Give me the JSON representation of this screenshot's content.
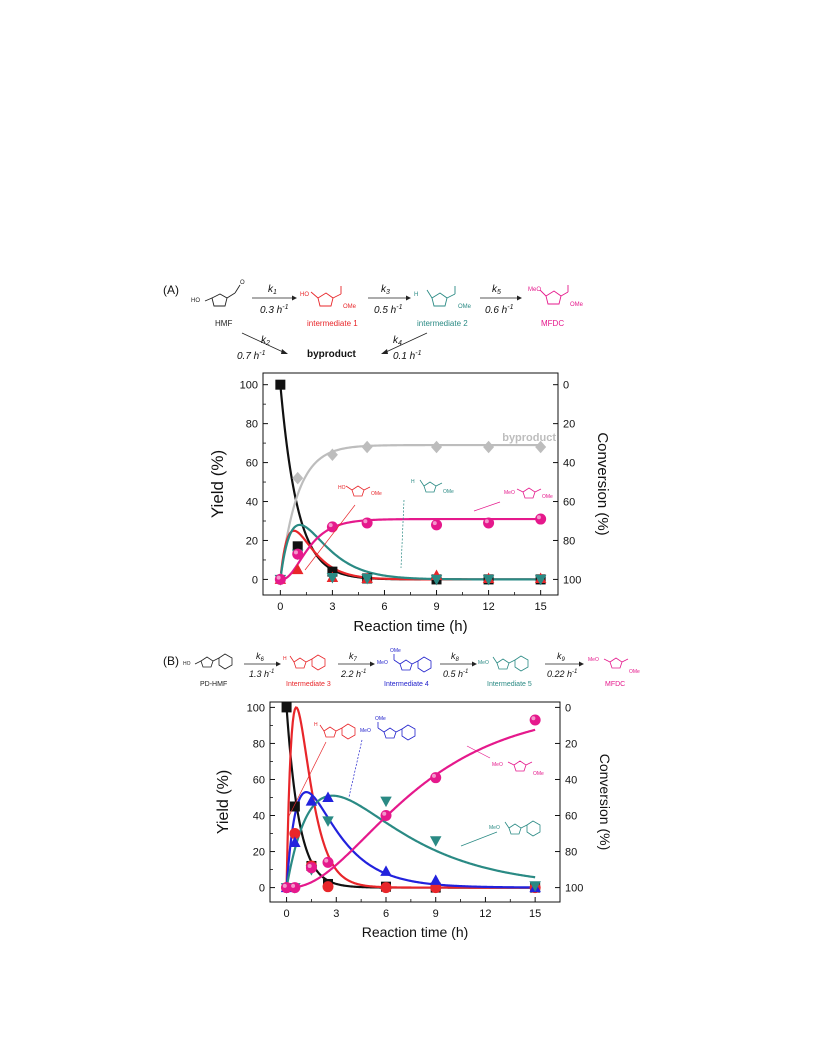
{
  "panel_a": {
    "panel_label": "(A)",
    "scheme": {
      "species": [
        {
          "label": "HMF",
          "color": "#222222"
        },
        {
          "label": "intermediate 1",
          "color": "#e8262a"
        },
        {
          "label": "intermediate 2",
          "color": "#2a8a84"
        },
        {
          "label": "MFDC",
          "color": "#e5198c"
        }
      ],
      "main_steps": [
        {
          "k": "k",
          "sub": "1",
          "rate": "0.3 h",
          "sup": "-1"
        },
        {
          "k": "k",
          "sub": "3",
          "rate": "0.5 h",
          "sup": "-1"
        },
        {
          "k": "k",
          "sub": "5",
          "rate": "0.6 h",
          "sup": "-1"
        }
      ],
      "side_steps": [
        {
          "k": "k",
          "sub": "2",
          "rate": "0.7 h",
          "sup": "-1"
        },
        {
          "k": "k",
          "sub": "4",
          "rate": "0.1 h",
          "sup": "-1"
        }
      ],
      "byproduct_label": "byproduct"
    },
    "struct_labels": {
      "ome": "OMe",
      "meo": "MeO",
      "ho": "HO",
      "o": "O",
      "h": "H"
    }
  },
  "panel_b": {
    "panel_label": "(B)",
    "scheme": {
      "species": [
        {
          "label": "PD-HMF",
          "color": "#222222"
        },
        {
          "label": "Intermediate 3",
          "color": "#e8262a"
        },
        {
          "label": "Intermediate 4",
          "color": "#2222cc"
        },
        {
          "label": "Intermediate 5",
          "color": "#2a8a84"
        },
        {
          "label": "MFDC",
          "color": "#e5198c"
        }
      ],
      "main_steps": [
        {
          "k": "k",
          "sub": "6",
          "rate": "1.3 h",
          "sup": "-1"
        },
        {
          "k": "k",
          "sub": "7",
          "rate": "2.2 h",
          "sup": "-1"
        },
        {
          "k": "k",
          "sub": "8",
          "rate": "0.5 h",
          "sup": "-1"
        },
        {
          "k": "k",
          "sub": "9",
          "rate": "0.22 h",
          "sup": "-1"
        }
      ]
    }
  },
  "colors": {
    "black": "#111111",
    "red": "#e8262a",
    "teal": "#2a8a84",
    "magenta": "#e5198c",
    "gray": "#bdbdbd",
    "blue": "#2222dd"
  },
  "chart_data": [
    {
      "type": "scatter",
      "title": "",
      "xlabel": "Reaction time (h)",
      "ylabel": "Yield (%)",
      "y2label": "Conversion (%)",
      "xlim": [
        -1,
        16
      ],
      "ylim": [
        -8,
        106
      ],
      "xticks": [
        0,
        3,
        6,
        9,
        12,
        15
      ],
      "yticks": [
        0,
        20,
        40,
        60,
        80,
        100
      ],
      "y2ticks": [
        100,
        80,
        60,
        40,
        20,
        0
      ],
      "annotation": "byproduct",
      "series": [
        {
          "id": "hmf",
          "marker": "square",
          "color": "#111111",
          "x": [
            0,
            1,
            3,
            5,
            9,
            12,
            15
          ],
          "y": [
            100,
            17,
            4,
            0.5,
            0,
            0,
            0
          ]
        },
        {
          "id": "byproduct",
          "marker": "diamond",
          "color": "#bdbdbd",
          "x": [
            0,
            1,
            3,
            5,
            9,
            12,
            15
          ],
          "y": [
            0,
            52,
            64,
            68,
            68,
            68,
            68
          ]
        },
        {
          "id": "intermediate1",
          "marker": "triangle-up",
          "color": "#e8262a",
          "x": [
            0,
            1,
            3,
            5,
            9,
            12,
            15
          ],
          "y": [
            0,
            5,
            1,
            0.5,
            2,
            0.5,
            0.5
          ]
        },
        {
          "id": "intermediate2",
          "marker": "triangle-down",
          "color": "#2a8a84",
          "x": [
            0,
            1,
            3,
            5,
            9,
            12,
            15
          ],
          "y": [
            0,
            13,
            1,
            0.5,
            0,
            0,
            0
          ]
        },
        {
          "id": "mfdc",
          "marker": "sphere",
          "color": "#e5198c",
          "x": [
            0,
            1,
            3,
            5,
            9,
            12,
            15
          ],
          "y": [
            0,
            13,
            27,
            29,
            28,
            29,
            31
          ]
        }
      ],
      "fits": [
        {
          "id": "hmf",
          "color": "#111111",
          "k": 1.0,
          "form": "decay",
          "amp": 100
        },
        {
          "id": "byproduct",
          "color": "#bdbdbd",
          "k": 1.0,
          "form": "rise",
          "amp": 69
        },
        {
          "id": "intermediate1",
          "color": "#e8262a",
          "form": "peak",
          "k1": 1.0,
          "k2": 1.6,
          "amp": 25
        },
        {
          "id": "intermediate2",
          "color": "#2a8a84",
          "form": "peak",
          "k1": 1.0,
          "k2": 0.8,
          "amp": 28
        },
        {
          "id": "mfdc",
          "color": "#e5198c",
          "form": "sigmoid",
          "amp": 31,
          "k": 1.0
        }
      ]
    },
    {
      "type": "scatter",
      "title": "",
      "xlabel": "Reaction time (h)",
      "ylabel": "Yield (%)",
      "y2label": "Conversion (%)",
      "xlim": [
        -1,
        16.5
      ],
      "ylim": [
        -8,
        103
      ],
      "xticks": [
        0,
        3,
        6,
        9,
        12,
        15
      ],
      "yticks": [
        0,
        20,
        40,
        60,
        80,
        100
      ],
      "y2ticks": [
        100,
        80,
        60,
        40,
        20,
        0
      ],
      "series": [
        {
          "id": "pd_hmf",
          "marker": "square",
          "color": "#111111",
          "x": [
            0,
            0.5,
            1.5,
            2.5,
            6,
            9,
            15
          ],
          "y": [
            100,
            45,
            12,
            2,
            0.5,
            0,
            0
          ]
        },
        {
          "id": "intermediate3",
          "marker": "circle",
          "color": "#e8262a",
          "x": [
            0,
            0.5,
            1.5,
            2.5,
            6,
            9,
            15
          ],
          "y": [
            0,
            30,
            12,
            0.5,
            0,
            0,
            0
          ]
        },
        {
          "id": "intermediate4",
          "marker": "triangle-up",
          "color": "#2222dd",
          "x": [
            0,
            0.5,
            1.5,
            2.5,
            6,
            9,
            15
          ],
          "y": [
            0,
            25,
            48,
            50,
            9,
            4,
            0
          ]
        },
        {
          "id": "intermediate5",
          "marker": "triangle-down",
          "color": "#2a8a84",
          "x": [
            0,
            0.5,
            1.5,
            2.5,
            6,
            9,
            15
          ],
          "y": [
            0,
            0,
            10,
            37,
            48,
            26,
            1
          ]
        },
        {
          "id": "mfdc",
          "marker": "sphere",
          "color": "#e5198c",
          "x": [
            0,
            0.5,
            1.5,
            2.5,
            6,
            9,
            15
          ],
          "y": [
            0,
            0,
            11,
            14,
            40,
            61,
            93
          ]
        }
      ],
      "fits": [
        {
          "id": "pd_hmf",
          "color": "#111111",
          "form": "decay",
          "k": 1.3,
          "amp": 100
        },
        {
          "id": "intermediate3",
          "color": "#e8262a",
          "form": "peak",
          "k1": 1.3,
          "k2": 2.2,
          "amp": 100
        },
        {
          "id": "intermediate4",
          "color": "#2222dd",
          "form": "peak",
          "k1": 1.3,
          "k2": 0.5,
          "amp": 53
        },
        {
          "id": "intermediate5",
          "color": "#2a8a84",
          "form": "peak",
          "k1": 0.55,
          "k2": 0.22,
          "amp": 51
        },
        {
          "id": "mfdc",
          "color": "#e5198c",
          "form": "sigmoid2",
          "amp": 100,
          "k": 0.2
        }
      ]
    }
  ]
}
